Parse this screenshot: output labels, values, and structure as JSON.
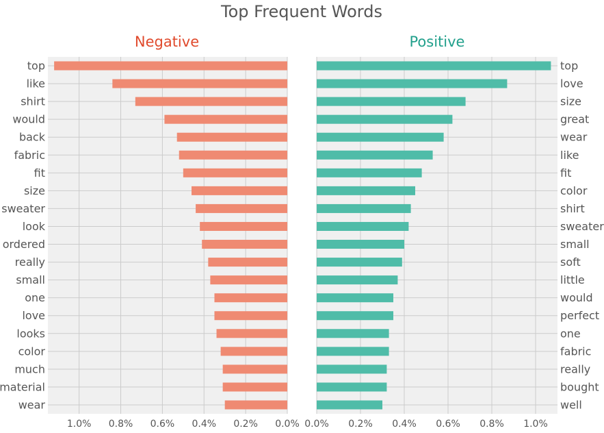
{
  "figure": {
    "title": "Top Frequent Words"
  },
  "colors": {
    "negative_bar": "#ef8a72",
    "positive_bar": "#4fbca8",
    "negative_title": "#e04a2c",
    "positive_title": "#22a08c",
    "panel_bg": "#f0f0f0",
    "grid": "#cbcbcb",
    "text": "#555555"
  },
  "chart_data": [
    {
      "type": "bar",
      "orientation": "horizontal",
      "title": "Negative",
      "axis_direction": "reversed",
      "xlim": [
        0,
        1.15
      ],
      "ticks": [
        1.0,
        0.8,
        0.6,
        0.4,
        0.2,
        0.0
      ],
      "tick_labels": [
        "1.0%",
        "0.8%",
        "0.6%",
        "0.4%",
        "0.2%",
        "0.0%"
      ],
      "label_side": "left",
      "grid": true,
      "categories": [
        "top",
        "like",
        "shirt",
        "would",
        "back",
        "fabric",
        "fit",
        "size",
        "sweater",
        "look",
        "ordered",
        "really",
        "small",
        "one",
        "love",
        "looks",
        "color",
        "much",
        "material",
        "wear"
      ],
      "values": [
        1.12,
        0.84,
        0.73,
        0.59,
        0.53,
        0.52,
        0.5,
        0.46,
        0.44,
        0.42,
        0.41,
        0.38,
        0.37,
        0.35,
        0.35,
        0.34,
        0.32,
        0.31,
        0.31,
        0.3
      ]
    },
    {
      "type": "bar",
      "orientation": "horizontal",
      "title": "Positive",
      "axis_direction": "normal",
      "xlim": [
        0,
        1.1
      ],
      "ticks": [
        0.0,
        0.2,
        0.4,
        0.6,
        0.8,
        1.0
      ],
      "tick_labels": [
        "0.0%",
        "0.2%",
        "0.4%",
        "0.6%",
        "0.8%",
        "1.0%"
      ],
      "label_side": "right",
      "grid": true,
      "categories": [
        "top",
        "love",
        "size",
        "great",
        "wear",
        "like",
        "fit",
        "color",
        "shirt",
        "sweater",
        "small",
        "soft",
        "little",
        "would",
        "perfect",
        "one",
        "fabric",
        "really",
        "bought",
        "well"
      ],
      "values": [
        1.07,
        0.87,
        0.68,
        0.62,
        0.58,
        0.53,
        0.48,
        0.45,
        0.43,
        0.42,
        0.4,
        0.39,
        0.37,
        0.35,
        0.35,
        0.33,
        0.33,
        0.32,
        0.32,
        0.3
      ]
    }
  ]
}
